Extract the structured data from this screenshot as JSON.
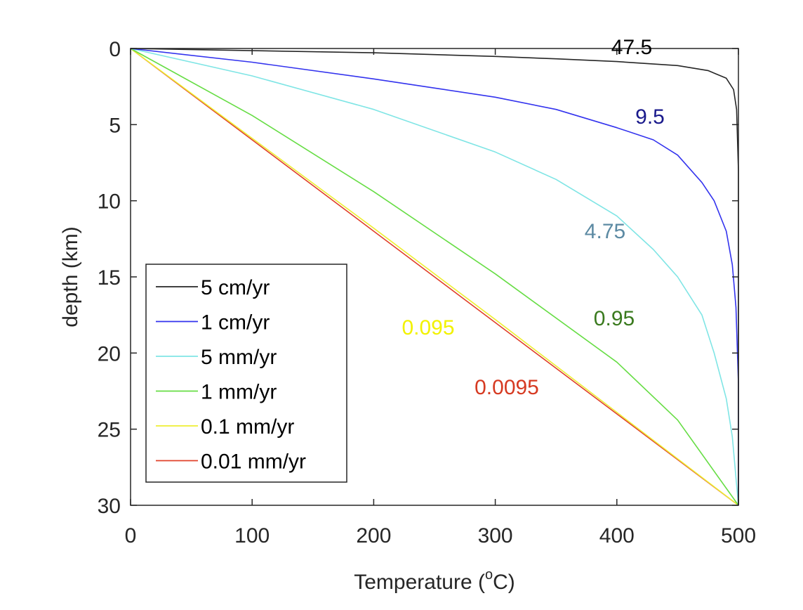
{
  "chart_data": {
    "type": "line",
    "title": "",
    "xlabel": "Temperature (",
    "xlabel_super": "o",
    "xlabel_suffix": "C)",
    "ylabel": "depth (km)",
    "xlim": [
      0,
      500
    ],
    "ylim": [
      0,
      30
    ],
    "y_reversed": true,
    "x_ticks": [
      0,
      100,
      200,
      300,
      400,
      500
    ],
    "y_ticks": [
      0,
      5,
      10,
      15,
      20,
      25,
      30
    ],
    "x_tick_labels": [
      "0",
      "100",
      "200",
      "300",
      "400",
      "500"
    ],
    "y_tick_labels": [
      "0",
      "5",
      "10",
      "15",
      "20",
      "25",
      "30"
    ],
    "grid": false,
    "legend_position": "lower-left",
    "series": [
      {
        "name": "5 cm/yr",
        "color": "#262626",
        "annotation": "47.5",
        "annotation_color": "#000000",
        "x": [
          0,
          200,
          300,
          350,
          400,
          450,
          475,
          490,
          496,
          498.5,
          500,
          500
        ],
        "y": [
          0,
          0.28,
          0.52,
          0.68,
          0.86,
          1.12,
          1.45,
          1.95,
          2.7,
          4.0,
          8,
          30
        ]
      },
      {
        "name": "1 cm/yr",
        "color": "#3333ee",
        "annotation": "9.5",
        "annotation_color": "#1a1a8c",
        "x": [
          0,
          100,
          200,
          300,
          350,
          400,
          430,
          450,
          470,
          480,
          490,
          495,
          498,
          500,
          500
        ],
        "y": [
          0,
          0.9,
          2.0,
          3.2,
          4.0,
          5.2,
          6.0,
          7.0,
          8.8,
          10.0,
          12.0,
          14.2,
          17.0,
          22,
          30
        ]
      },
      {
        "name": "5 mm/yr",
        "color": "#7fe5e5",
        "annotation": "4.75",
        "annotation_color": "#5c8aa3",
        "x": [
          0,
          100,
          200,
          300,
          350,
          400,
          430,
          450,
          470,
          480,
          490,
          495,
          500
        ],
        "y": [
          0,
          1.8,
          4.0,
          6.8,
          8.6,
          11.0,
          13.2,
          15.0,
          17.5,
          20.0,
          23.0,
          25.5,
          30
        ]
      },
      {
        "name": "1 mm/yr",
        "color": "#66dd44",
        "annotation": "0.95",
        "annotation_color": "#3a7a1e",
        "x": [
          0,
          100,
          200,
          300,
          400,
          450,
          500
        ],
        "y": [
          0,
          4.4,
          9.4,
          14.8,
          20.6,
          24.4,
          30
        ]
      },
      {
        "name": "0.1 mm/yr",
        "color": "#eeee33",
        "annotation": "0.095",
        "annotation_color": "#f2f200",
        "x": [
          0,
          100,
          200,
          300,
          400,
          500
        ],
        "y": [
          0,
          5.9,
          11.8,
          17.8,
          23.9,
          30
        ]
      },
      {
        "name": "0.01 mm/yr",
        "color": "#e0402a",
        "annotation": "0.0095",
        "annotation_color": "#d63a22",
        "x": [
          0,
          100,
          200,
          300,
          400,
          500
        ],
        "y": [
          0,
          6.0,
          12.0,
          18.0,
          24.0,
          30
        ]
      }
    ]
  }
}
